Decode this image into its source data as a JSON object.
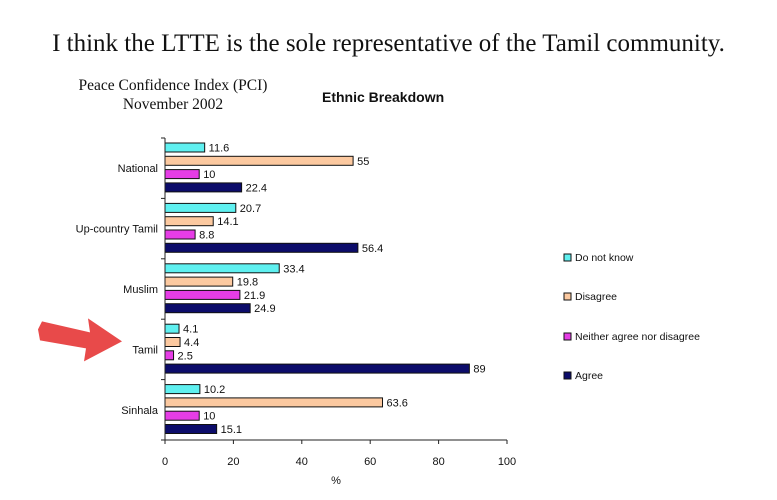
{
  "headline": "I think the LTTE is the sole representative of the Tamil community.",
  "pci_title": "Peace Confidence Index (PCI)",
  "pci_date": "November 2002",
  "chart_data": {
    "type": "bar",
    "orientation": "horizontal",
    "title": "Ethnic Breakdown",
    "xlabel": "%",
    "ylabel": "",
    "xlim": [
      0,
      100
    ],
    "x_ticks": [
      0,
      20,
      40,
      60,
      80,
      100
    ],
    "categories": [
      "National",
      "Up-country Tamil",
      "Muslim",
      "Tamil",
      "Sinhala"
    ],
    "series": [
      {
        "name": "Do not know",
        "color": "#5ff0f0",
        "values": [
          11.6,
          20.7,
          33.4,
          4.1,
          10.2
        ]
      },
      {
        "name": "Disagree",
        "color": "#fcc9a0",
        "values": [
          55,
          14.1,
          19.8,
          4.4,
          63.6
        ]
      },
      {
        "name": "Neither agree nor disagree",
        "color": "#e63de6",
        "values": [
          10,
          8.8,
          21.9,
          2.5,
          10
        ]
      },
      {
        "name": "Agree",
        "color": "#0c0c6a",
        "values": [
          22.4,
          56.4,
          24.9,
          89,
          15.1
        ]
      }
    ],
    "grid": false,
    "legend_position": "right",
    "annotation": {
      "type": "arrow",
      "points_to": "Tamil",
      "color": "#e84a4a"
    }
  }
}
